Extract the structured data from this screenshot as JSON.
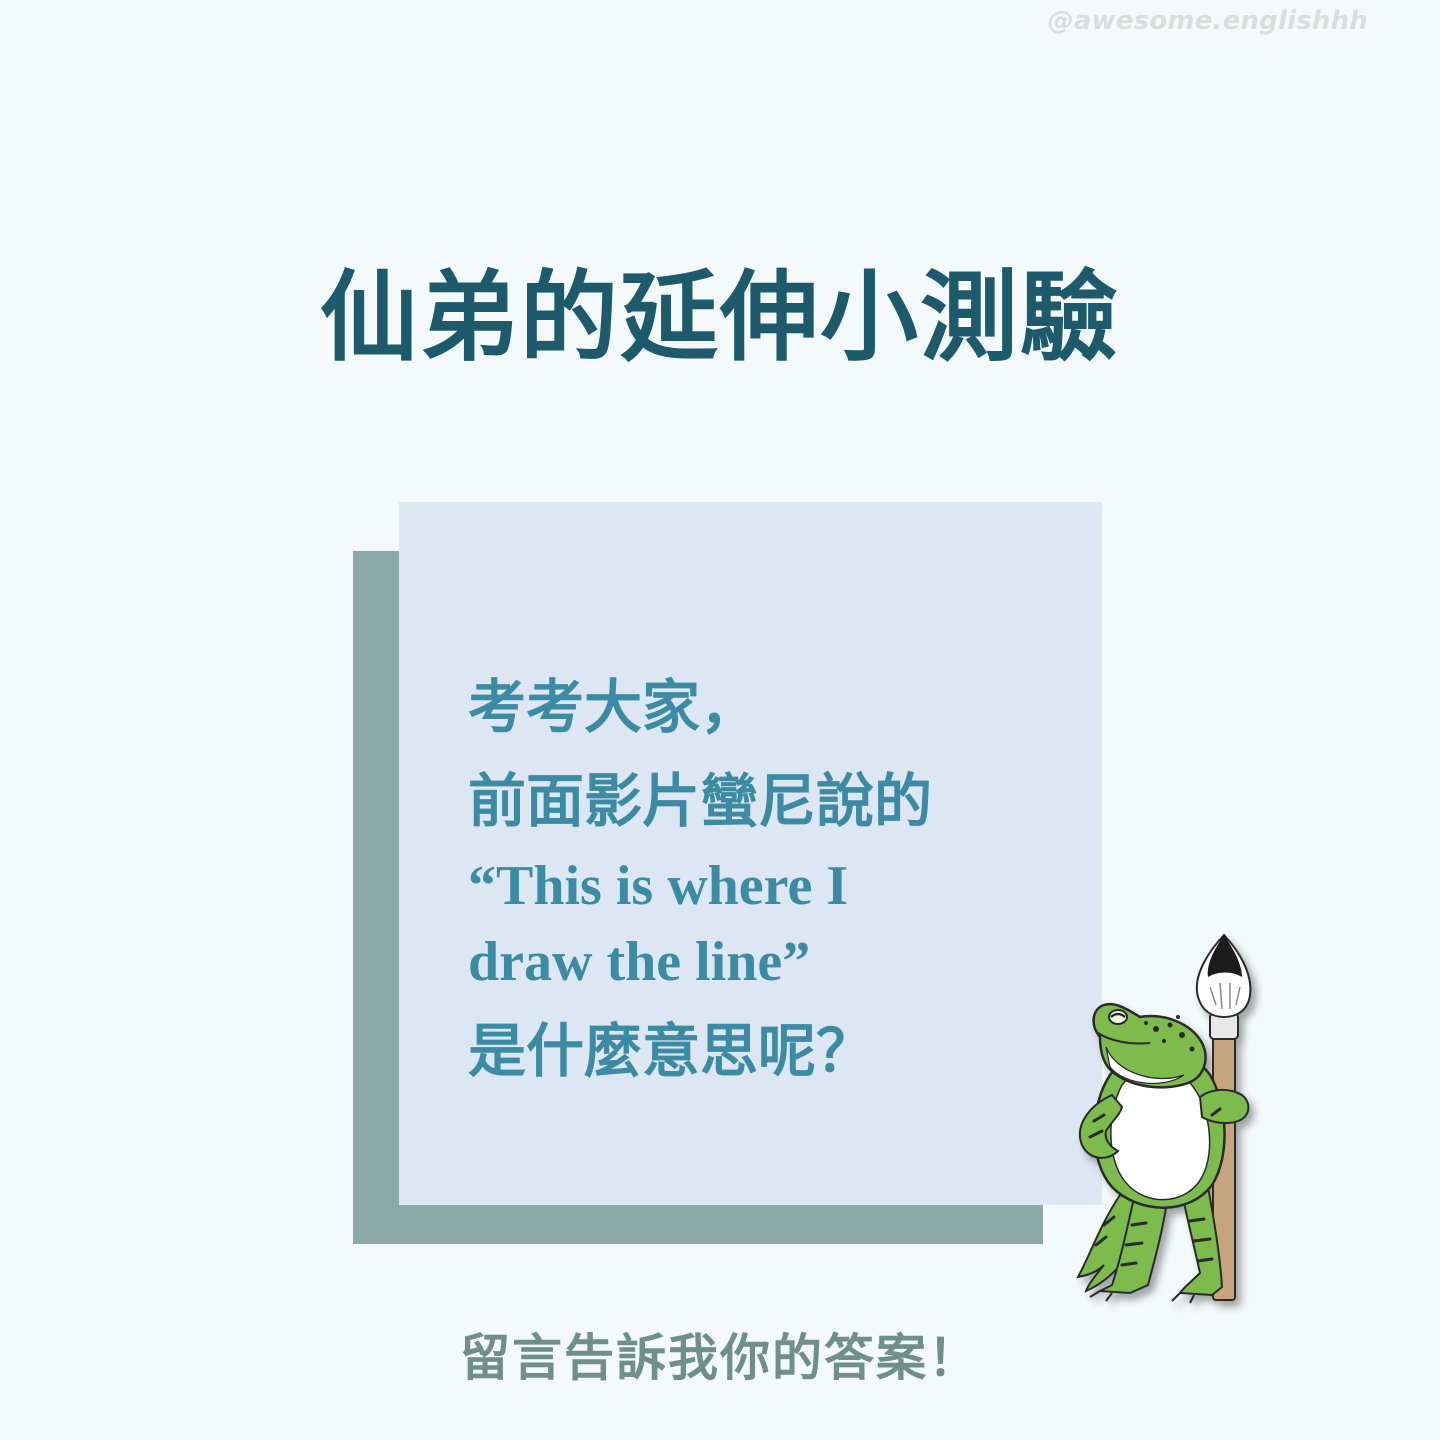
{
  "watermark": "@awesome.englishhh",
  "title": "仙弟的延伸小測驗",
  "quiz": {
    "line1": "考考大家，",
    "line2": "前面影片蠻尼說的",
    "line3": "“This is where I",
    "line4": "draw the line”",
    "line5": "是什麼意思呢？"
  },
  "footer": "留言告訴我你的答案！",
  "illustration": {
    "icon": "frog-holding-brush-icon"
  },
  "colors": {
    "background": "#f4fafb",
    "title": "#1d5a6c",
    "card": "#dde6f3",
    "card_shadow": "#8ba9a9",
    "quiz_text": "#3c8ba4",
    "footer_text": "#6f8f8a",
    "frog_green": "#7dbb4e"
  }
}
